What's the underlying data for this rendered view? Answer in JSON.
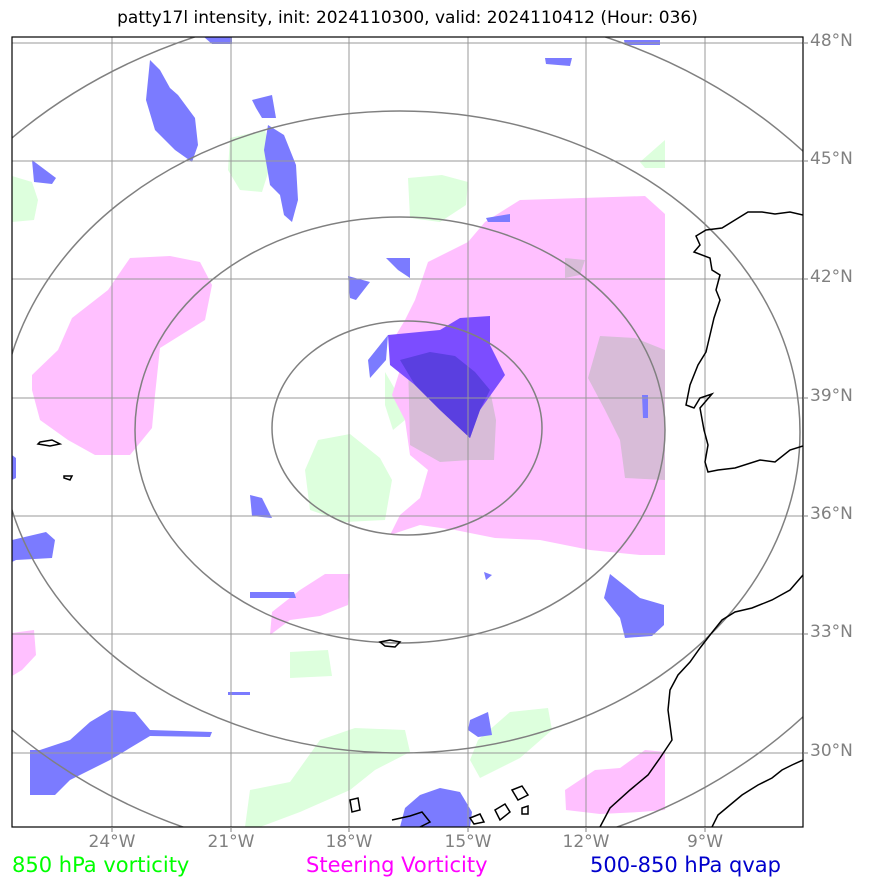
{
  "title": "patty17l intensity, init: 2024110300, valid: 2024110412 (Hour: 036)",
  "lat_labels": [
    "48°N",
    "45°N",
    "42°N",
    "39°N",
    "36°N",
    "33°N",
    "30°N"
  ],
  "lon_labels": [
    "24°W",
    "21°W",
    "18°W",
    "15°W",
    "12°W",
    "9°W"
  ],
  "legend": {
    "vorticity_850": "850 hPa vorticity",
    "steering": "Steering Vorticity",
    "qvap": "500-850 hPa qvap"
  },
  "colors": {
    "vorticity_850": "#00ff00",
    "steering": "#ff00ff",
    "qvap": "#0000cc",
    "vorticity_fill": "#ddffdd",
    "steering_fill": "#ffc0ff",
    "qvap_fill": "#7b7bff",
    "label_gray": "#808080"
  }
}
